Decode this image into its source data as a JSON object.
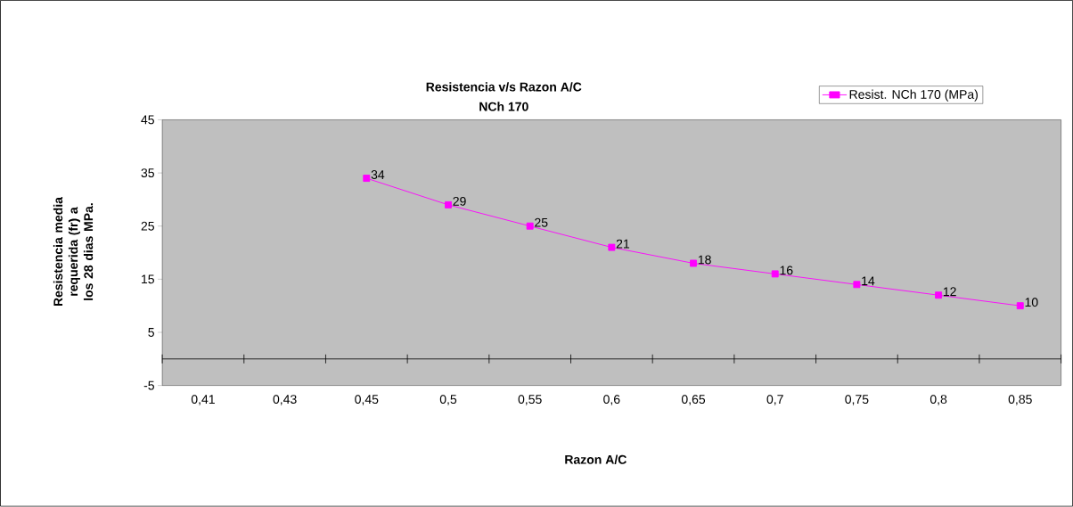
{
  "chart_data": {
    "type": "line",
    "title": "Resistencia v/s Razon A/C",
    "subtitle": "NCh 170",
    "xlabel": "Razon A/C",
    "ylabel": "Resistencia media requerida (fr) a los 28 dias MPa.",
    "categories": [
      "0,41",
      "0,43",
      "0,45",
      "0,5",
      "0,55",
      "0,6",
      "0,65",
      "0,7",
      "0,75",
      "0,8",
      "0,85"
    ],
    "series": [
      {
        "name": "Resist. NCh 170 (MPa)",
        "color": "#ff00ff",
        "values": [
          null,
          null,
          34,
          29,
          25,
          21,
          18,
          16,
          14,
          12,
          10
        ]
      }
    ],
    "ylim": [
      -5,
      45
    ],
    "yticks": [
      -5,
      5,
      15,
      25,
      35,
      45
    ],
    "data_labels": true,
    "marker": "square",
    "legend": "top right",
    "grid": false
  }
}
